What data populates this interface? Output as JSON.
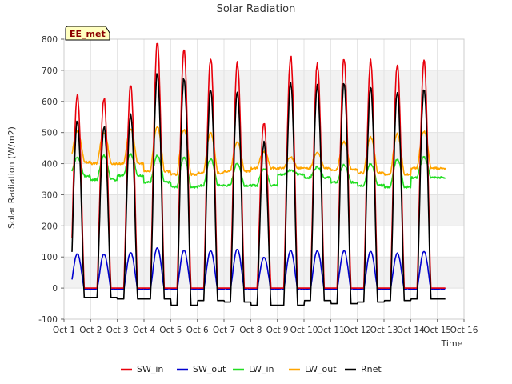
{
  "chart_data": {
    "type": "line",
    "title": "Solar Radiation",
    "xlabel": "Time",
    "ylabel": "Solar Radiation (W/m2)",
    "ylim": [
      -100,
      800
    ],
    "xlim": [
      1,
      16
    ],
    "yticks": [
      -100,
      0,
      100,
      200,
      300,
      400,
      500,
      600,
      700,
      800
    ],
    "xticks": [
      {
        "value": 1,
        "label": "Oct 1"
      },
      {
        "value": 2,
        "label": "Oct 2"
      },
      {
        "value": 3,
        "label": "Oct 3"
      },
      {
        "value": 4,
        "label": "Oct 4"
      },
      {
        "value": 5,
        "label": "Oct 5"
      },
      {
        "value": 6,
        "label": "Oct 6"
      },
      {
        "value": 7,
        "label": "Oct 7"
      },
      {
        "value": 8,
        "label": "Oct 8"
      },
      {
        "value": 9,
        "label": "Oct 9"
      },
      {
        "value": 10,
        "label": "Oct 10"
      },
      {
        "value": 11,
        "label": "Oct 11"
      },
      {
        "value": 12,
        "label": "Oct 12"
      },
      {
        "value": 13,
        "label": "Oct 13"
      },
      {
        "value": 14,
        "label": "Oct 14"
      },
      {
        "value": 15,
        "label": "Oct 15"
      },
      {
        "value": 16,
        "label": "Oct 16"
      }
    ],
    "grid": true,
    "legend_position": "bottom",
    "site_badge": "EE_met",
    "days": [
      1.5,
      2.5,
      3.5,
      4.5,
      5.5,
      6.5,
      7.5,
      8.5,
      9.5,
      10.5,
      11.5,
      12.5,
      13.5,
      14.5
    ],
    "series": [
      {
        "name": "SW_in",
        "color": "#e8000b",
        "daily_peak": [
          620,
          610,
          650,
          790,
          770,
          740,
          725,
          535,
          745,
          720,
          740,
          730,
          715,
          730
        ],
        "night_value": 0
      },
      {
        "name": "SW_out",
        "color": "#0000d0",
        "daily_peak": [
          110,
          110,
          115,
          130,
          122,
          120,
          125,
          100,
          120,
          120,
          120,
          118,
          112,
          118
        ],
        "night_value": -3
      },
      {
        "name": "LW_in",
        "color": "#22dd22",
        "daily_peak": [
          420,
          425,
          430,
          425,
          420,
          415,
          400,
          385,
          380,
          390,
          395,
          400,
          415,
          420
        ],
        "night_value": [
          360,
          348,
          362,
          340,
          325,
          330,
          330,
          330,
          365,
          355,
          340,
          330,
          325,
          355
        ]
      },
      {
        "name": "LW_out",
        "color": "#ffa500",
        "daily_peak": [
          505,
          500,
          510,
          520,
          510,
          500,
          470,
          440,
          420,
          435,
          470,
          485,
          495,
          505
        ],
        "night_value": [
          405,
          400,
          400,
          375,
          365,
          370,
          375,
          385,
          385,
          385,
          380,
          370,
          365,
          385
        ]
      },
      {
        "name": "Rnet",
        "color": "#000000",
        "daily_peak": [
          535,
          520,
          555,
          690,
          675,
          640,
          630,
          465,
          660,
          650,
          660,
          645,
          630,
          640
        ],
        "night_value": [
          -30,
          -30,
          -35,
          -35,
          -55,
          -40,
          -45,
          -55,
          -55,
          -40,
          -50,
          -45,
          -40,
          -35
        ]
      }
    ]
  }
}
